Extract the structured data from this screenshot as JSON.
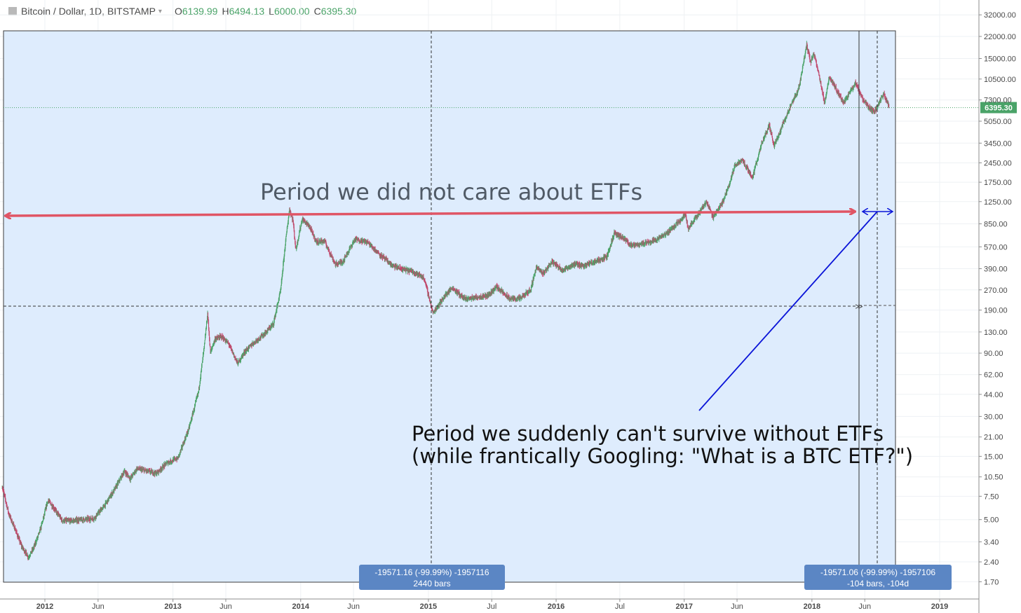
{
  "header": {
    "symbol": "Bitcoin / Dollar, 1D, BITSTAMP",
    "caret_icon": "chevron-down-icon",
    "open_label": "O",
    "open": "6139.99",
    "high_label": "H",
    "high": "6494.13",
    "low_label": "L",
    "low": "6000.00",
    "close_label": "C",
    "close": "6395.30"
  },
  "colors": {
    "up": "#4aa368",
    "down": "#c0486b",
    "range_fill": "#deecfd",
    "red_arrow": "#e05565",
    "blue_arrow": "#0a14d8",
    "badge": "#5b86c4",
    "price_tag": "#4aa368"
  },
  "chart_data": {
    "type": "candlestick",
    "scale": "log",
    "ylim": [
      1.7,
      32000
    ],
    "y_ticks": [
      "32000.00",
      "22000.00",
      "15000.00",
      "10500.00",
      "7300.00",
      "5050.00",
      "3450.00",
      "2450.00",
      "1750.00",
      "1250.00",
      "850.00",
      "570.00",
      "390.00",
      "270.00",
      "190.00",
      "130.00",
      "90.00",
      "62.00",
      "44.00",
      "30.00",
      "21.00",
      "15.00",
      "10.50",
      "7.50",
      "5.00",
      "3.40",
      "2.40",
      "1.70"
    ],
    "x_ticks": [
      {
        "label": "2012",
        "date": "2012-01-01"
      },
      {
        "label": "Jun",
        "date": "2012-06-01"
      },
      {
        "label": "2013",
        "date": "2013-01-01"
      },
      {
        "label": "Jun",
        "date": "2013-06-01"
      },
      {
        "label": "2014",
        "date": "2014-01-01"
      },
      {
        "label": "Jun",
        "date": "2014-06-01"
      },
      {
        "label": "2015",
        "date": "2015-01-01"
      },
      {
        "label": "Jul",
        "date": "2015-07-01"
      },
      {
        "label": "2016",
        "date": "2016-01-01"
      },
      {
        "label": "Jul",
        "date": "2016-07-01"
      },
      {
        "label": "2017",
        "date": "2017-01-01"
      },
      {
        "label": "Jun",
        "date": "2017-06-01"
      },
      {
        "label": "2018",
        "date": "2018-01-01"
      },
      {
        "label": "Jun",
        "date": "2018-06-01"
      },
      {
        "label": "2019",
        "date": "2019-01-01"
      }
    ],
    "last_price": "6395.30",
    "series": [
      {
        "name": "Bitcoin / Dollar",
        "points": [
          [
            "2011-09-01",
            8.9
          ],
          [
            "2011-09-20",
            5.5
          ],
          [
            "2011-10-10",
            4.1
          ],
          [
            "2011-10-25",
            3.2
          ],
          [
            "2011-11-15",
            2.6
          ],
          [
            "2011-12-01",
            3.1
          ],
          [
            "2011-12-20",
            4.3
          ],
          [
            "2012-01-10",
            7.0
          ],
          [
            "2012-01-25",
            6.2
          ],
          [
            "2012-02-20",
            4.9
          ],
          [
            "2012-03-20",
            4.9
          ],
          [
            "2012-04-20",
            5.0
          ],
          [
            "2012-05-20",
            5.1
          ],
          [
            "2012-06-20",
            6.4
          ],
          [
            "2012-07-20",
            8.6
          ],
          [
            "2012-08-15",
            11.6
          ],
          [
            "2012-09-01",
            10.2
          ],
          [
            "2012-09-20",
            12.1
          ],
          [
            "2012-10-20",
            11.6
          ],
          [
            "2012-11-15",
            11.2
          ],
          [
            "2012-12-15",
            13.4
          ],
          [
            "2013-01-15",
            14.5
          ],
          [
            "2013-02-15",
            24.0
          ],
          [
            "2013-03-15",
            46.0
          ],
          [
            "2013-04-01",
            104
          ],
          [
            "2013-04-10",
            180
          ],
          [
            "2013-04-18",
            90
          ],
          [
            "2013-05-01",
            115
          ],
          [
            "2013-05-20",
            120
          ],
          [
            "2013-06-10",
            105
          ],
          [
            "2013-07-05",
            75
          ],
          [
            "2013-07-25",
            92
          ],
          [
            "2013-08-20",
            108
          ],
          [
            "2013-09-20",
            126
          ],
          [
            "2013-10-15",
            150
          ],
          [
            "2013-11-05",
            270
          ],
          [
            "2013-11-18",
            600
          ],
          [
            "2013-11-30",
            1100
          ],
          [
            "2013-12-10",
            900
          ],
          [
            "2013-12-18",
            540
          ],
          [
            "2014-01-05",
            920
          ],
          [
            "2014-01-25",
            820
          ],
          [
            "2014-02-15",
            620
          ],
          [
            "2014-03-10",
            630
          ],
          [
            "2014-04-10",
            420
          ],
          [
            "2014-05-01",
            440
          ],
          [
            "2014-06-05",
            650
          ],
          [
            "2014-07-10",
            620
          ],
          [
            "2014-08-15",
            500
          ],
          [
            "2014-09-20",
            410
          ],
          [
            "2014-10-20",
            385
          ],
          [
            "2014-11-20",
            370
          ],
          [
            "2014-12-20",
            330
          ],
          [
            "2015-01-14",
            180
          ],
          [
            "2015-02-15",
            240
          ],
          [
            "2015-03-10",
            280
          ],
          [
            "2015-04-15",
            230
          ],
          [
            "2015-05-20",
            238
          ],
          [
            "2015-06-20",
            245
          ],
          [
            "2015-07-15",
            285
          ],
          [
            "2015-08-20",
            232
          ],
          [
            "2015-09-20",
            232
          ],
          [
            "2015-10-20",
            270
          ],
          [
            "2015-11-05",
            400
          ],
          [
            "2015-11-25",
            360
          ],
          [
            "2015-12-20",
            440
          ],
          [
            "2016-01-20",
            380
          ],
          [
            "2016-02-20",
            420
          ],
          [
            "2016-03-20",
            412
          ],
          [
            "2016-04-20",
            440
          ],
          [
            "2016-05-25",
            480
          ],
          [
            "2016-06-15",
            720
          ],
          [
            "2016-07-10",
            660
          ],
          [
            "2016-08-05",
            580
          ],
          [
            "2016-09-10",
            610
          ],
          [
            "2016-10-10",
            640
          ],
          [
            "2016-11-10",
            710
          ],
          [
            "2016-12-20",
            900
          ],
          [
            "2017-01-05",
            1020
          ],
          [
            "2017-01-12",
            780
          ],
          [
            "2017-02-10",
            1000
          ],
          [
            "2017-03-05",
            1250
          ],
          [
            "2017-03-25",
            960
          ],
          [
            "2017-04-20",
            1220
          ],
          [
            "2017-05-10",
            1700
          ],
          [
            "2017-05-25",
            2300
          ],
          [
            "2017-06-15",
            2600
          ],
          [
            "2017-07-15",
            1900
          ],
          [
            "2017-08-10",
            3400
          ],
          [
            "2017-09-01",
            4700
          ],
          [
            "2017-09-15",
            3300
          ],
          [
            "2017-10-10",
            4800
          ],
          [
            "2017-11-01",
            6500
          ],
          [
            "2017-11-25",
            9000
          ],
          [
            "2017-12-17",
            19000
          ],
          [
            "2017-12-28",
            14000
          ],
          [
            "2018-01-06",
            16500
          ],
          [
            "2018-01-20",
            11500
          ],
          [
            "2018-02-06",
            7000
          ],
          [
            "2018-02-20",
            11000
          ],
          [
            "2018-03-10",
            9000
          ],
          [
            "2018-04-01",
            6900
          ],
          [
            "2018-05-05",
            9800
          ],
          [
            "2018-05-25",
            7500
          ],
          [
            "2018-06-12",
            6400
          ],
          [
            "2018-06-28",
            5900
          ],
          [
            "2018-07-10",
            6700
          ],
          [
            "2018-07-25",
            8200
          ],
          [
            "2018-08-10",
            6395
          ]
        ]
      }
    ]
  },
  "annotations": {
    "top_text": "Period we did not care about ETFs",
    "bottom_text_line1": "Period we suddenly can't survive without ETFs",
    "bottom_text_line2": "(while frantically Googling: \"What is a BTC ETF?\")",
    "badge1_line1": "-19571.16 (-99.99%) -1957116",
    "badge1_line2": "2440 bars",
    "badge2_line1": "-19571.06 (-99.99%) -1957106",
    "badge2_line2": "-104 bars, -104d"
  }
}
